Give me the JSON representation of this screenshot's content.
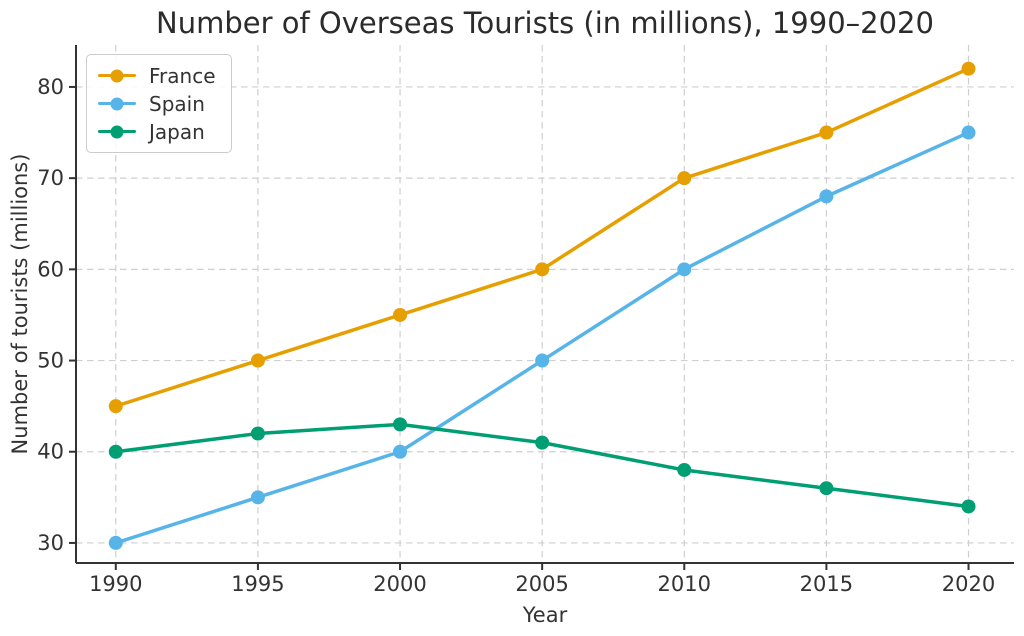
{
  "chart_data": {
    "type": "line",
    "title": "Number of Overseas Tourists (in millions), 1990–2020",
    "xlabel": "Year",
    "ylabel": "Number of tourists (millions)",
    "x": [
      1990,
      1995,
      2000,
      2005,
      2010,
      2015,
      2020
    ],
    "series": [
      {
        "name": "France",
        "color": "#E69F00",
        "values": [
          45,
          50,
          55,
          60,
          70,
          75,
          82
        ]
      },
      {
        "name": "Spain",
        "color": "#56B4E9",
        "values": [
          30,
          35,
          40,
          50,
          60,
          68,
          75
        ]
      },
      {
        "name": "Japan",
        "color": "#009E73",
        "values": [
          40,
          42,
          43,
          41,
          38,
          36,
          34
        ]
      }
    ],
    "xticks": [
      1990,
      1995,
      2000,
      2005,
      2010,
      2015,
      2020
    ],
    "yticks": [
      30,
      40,
      50,
      60,
      70,
      80
    ],
    "xlim": [
      1988.6,
      2021.6
    ],
    "ylim": [
      27.8,
      84.6
    ],
    "grid": true,
    "legend_position": "upper left"
  },
  "style": {
    "grid_color": "#cfcfcf",
    "axis_color": "#333333",
    "title_color": "#2b2b2b",
    "text_color": "#333333",
    "background": "#ffffff"
  }
}
